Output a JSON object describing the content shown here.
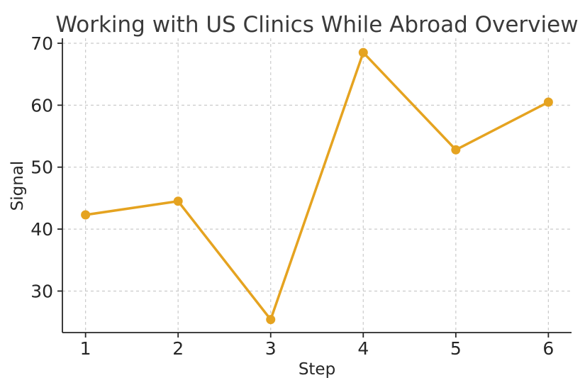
{
  "chart_data": {
    "type": "line",
    "title": "Working with US Clinics While Abroad Overview",
    "xlabel": "Step",
    "ylabel": "Signal",
    "x": [
      1,
      2,
      3,
      4,
      5,
      6
    ],
    "series": [
      {
        "name": "Signal",
        "values": [
          42.3,
          44.5,
          25.4,
          68.5,
          52.8,
          60.5
        ]
      }
    ],
    "xticks": [
      1,
      2,
      3,
      4,
      5,
      6
    ],
    "yticks": [
      30,
      40,
      50,
      60,
      70
    ],
    "xlim": [
      0.75,
      6.25
    ],
    "ylim": [
      23.3,
      70.8
    ],
    "grid": true,
    "grid_style": "dashed",
    "legend_position": "none",
    "marker": "circle",
    "colors": {
      "line": "#E5A320",
      "grid": "#CBCBCB",
      "text": "#262626",
      "title": "#3A3A3A",
      "background": "#FFFFFF"
    }
  }
}
